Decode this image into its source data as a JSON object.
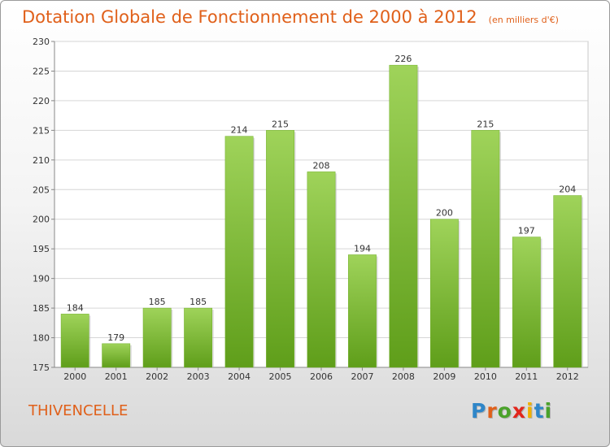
{
  "header": {
    "title": "Dotation Globale de Fonctionnement de 2000 à 2012",
    "subtitle": "(en milliers d'€)"
  },
  "footer": {
    "commune": "THIVENCELLE",
    "logo_letters": [
      "P",
      "r",
      "o",
      "x",
      "i",
      "t",
      "i"
    ],
    "logo_colors": [
      "#2f86c8",
      "#e0601a",
      "#4aa22a",
      "#e2261c",
      "#f0b000",
      "#2f86c8",
      "#4aa22a"
    ]
  },
  "chart_data": {
    "type": "bar",
    "categories": [
      "2000",
      "2001",
      "2002",
      "2003",
      "2004",
      "2005",
      "2006",
      "2007",
      "2008",
      "2009",
      "2010",
      "2011",
      "2012"
    ],
    "values": [
      184,
      179,
      185,
      185,
      214,
      215,
      208,
      194,
      226,
      200,
      215,
      197,
      204
    ],
    "ylim": [
      175,
      230
    ],
    "yticks": [
      175,
      180,
      185,
      190,
      195,
      200,
      205,
      210,
      215,
      220,
      225,
      230
    ],
    "grid": true,
    "legend": "none",
    "bar_color_light": "#9fd35a",
    "bar_color_dark": "#5f9e1a"
  }
}
